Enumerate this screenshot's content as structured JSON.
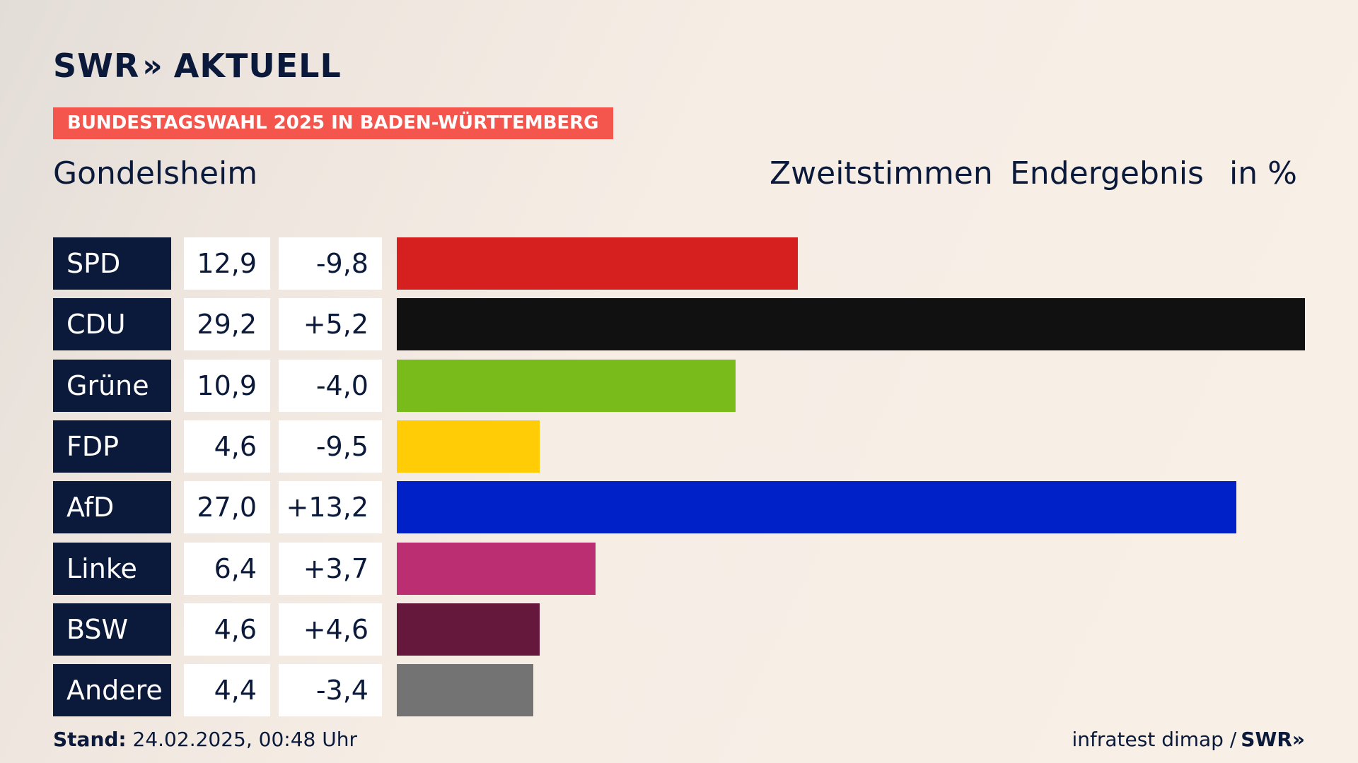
{
  "brand": {
    "name": "SWR",
    "chevron": "»",
    "product": "AKTUELL"
  },
  "badge": "BUNDESTAGSWAHL 2025 IN BADEN-WÜRTTEMBERG",
  "region": "Gondelsheim",
  "headers": {
    "votes": "Zweitstimmen",
    "status": "Endergebnis",
    "unit": "in %"
  },
  "chart_data": {
    "type": "bar",
    "orientation": "horizontal",
    "categories": [
      "SPD",
      "CDU",
      "Grüne",
      "FDP",
      "AfD",
      "Linke",
      "BSW",
      "Andere"
    ],
    "values": [
      12.9,
      29.2,
      10.9,
      4.6,
      27.0,
      6.4,
      4.6,
      4.4
    ],
    "value_labels": [
      "12,9",
      "29,2",
      "10,9",
      "4,6",
      "27,0",
      "6,4",
      "4,6",
      "4,4"
    ],
    "change_labels": [
      "-9,8",
      "+5,2",
      "-4,0",
      "-9,5",
      "+13,2",
      "+3,7",
      "+4,6",
      "-3,4"
    ],
    "colors": [
      "#d61f1f",
      "#111111",
      "#7abb1c",
      "#ffcc05",
      "#0020c8",
      "#bb2f72",
      "#66173c",
      "#737373"
    ],
    "xlim": [
      0,
      29.2
    ]
  },
  "footer": {
    "stand_label": "Stand:",
    "stand_value": "24.02.2025, 00:48 Uhr",
    "source": "infratest dimap /",
    "source_brand": "SWR»"
  }
}
